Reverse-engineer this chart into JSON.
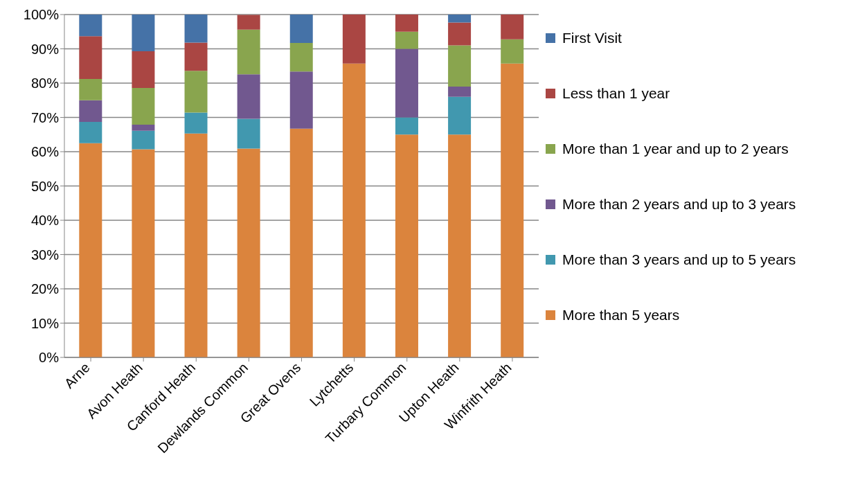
{
  "chart_data": {
    "type": "bar",
    "stacked": true,
    "categories": [
      "Arne",
      "Avon Heath",
      "Canford Heath",
      "Dewlands Common",
      "Great Ovens",
      "Lytchetts",
      "Turbary Common",
      "Upton Heath",
      "Winfrith Heath"
    ],
    "series": [
      {
        "name": "More than 5 years",
        "color": "#db843d",
        "values": [
          62.5,
          60.7,
          65.3,
          60.9,
          66.7,
          85.7,
          65,
          65,
          85.7
        ]
      },
      {
        "name": "More than 3 years and up to 5 years",
        "color": "#4198af",
        "values": [
          6.2,
          5.4,
          6.1,
          8.7,
          0,
          0,
          5,
          11,
          0
        ]
      },
      {
        "name": "More than 2 years and up to 3 years",
        "color": "#71588f",
        "values": [
          6.3,
          1.8,
          0,
          13,
          16.7,
          0,
          20,
          3,
          0
        ]
      },
      {
        "name": "More than 1 year and up to 2 years",
        "color": "#89a54e",
        "values": [
          6.2,
          10.7,
          12.2,
          13,
          8.3,
          0,
          5,
          12,
          7.1
        ]
      },
      {
        "name": "Less than 1 year",
        "color": "#aa4643",
        "values": [
          12.5,
          10.7,
          8.2,
          4.3,
          0,
          14.3,
          5,
          6.7,
          7.2
        ]
      },
      {
        "name": "First Visit",
        "color": "#4572a7",
        "values": [
          6.3,
          10.7,
          8.2,
          0,
          8.3,
          0,
          0,
          2.3,
          0
        ]
      }
    ],
    "ylim": [
      0,
      100
    ],
    "yticks": [
      {
        "value": 0,
        "label": "0%"
      },
      {
        "value": 10,
        "label": "10%"
      },
      {
        "value": 20,
        "label": "20%"
      },
      {
        "value": 30,
        "label": "30%"
      },
      {
        "value": 40,
        "label": "40%"
      },
      {
        "value": 50,
        "label": "50%"
      },
      {
        "value": 60,
        "label": "60%"
      },
      {
        "value": 70,
        "label": "70%"
      },
      {
        "value": 80,
        "label": "80%"
      },
      {
        "value": 90,
        "label": "90%"
      },
      {
        "value": 100,
        "label": "100%"
      }
    ],
    "grid": "y",
    "legend": "right"
  }
}
